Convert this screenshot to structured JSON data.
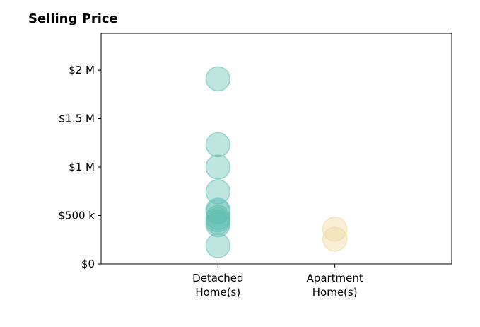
{
  "chart_data": {
    "type": "scatter",
    "title": "Selling Price",
    "xlabel": "",
    "ylabel": "",
    "categories": [
      "Detached\nHome(s)",
      "Apartment\nHome(s)"
    ],
    "xlim": [
      -1,
      2
    ],
    "ylim": [
      0,
      2380000
    ],
    "yticks": [
      {
        "value": 0,
        "label": "$0"
      },
      {
        "value": 500000,
        "label": "$500 k"
      },
      {
        "value": 1000000,
        "label": "$1 M"
      },
      {
        "value": 1500000,
        "label": "$1.5 M"
      },
      {
        "value": 2000000,
        "label": "$2 M"
      }
    ],
    "grid": false,
    "series": [
      {
        "category_index": 0,
        "color": "#5fbdb1",
        "values": [
          1910000,
          1230000,
          1000000,
          745000,
          555000,
          540000,
          480000,
          455000,
          430000,
          405000,
          190000
        ]
      },
      {
        "category_index": 1,
        "color": "#f1d79a",
        "values": [
          360000,
          255000
        ]
      }
    ]
  }
}
